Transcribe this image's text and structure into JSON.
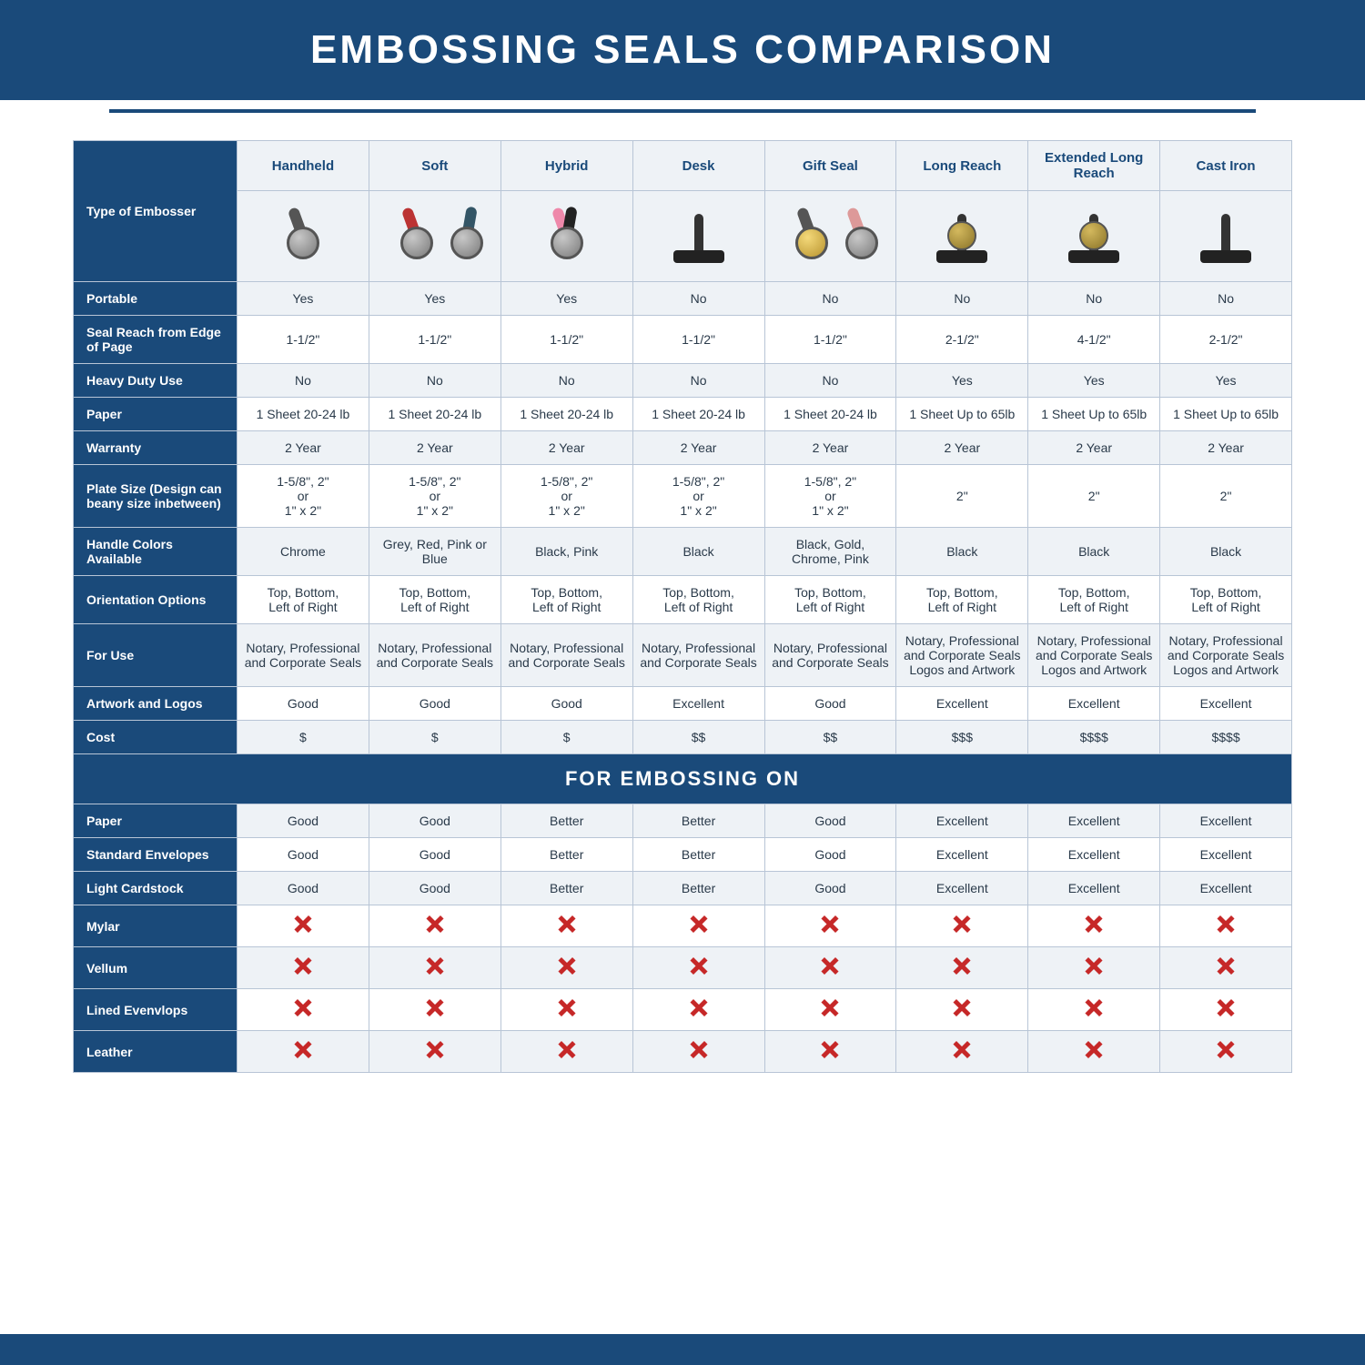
{
  "title": "EMBOSSING SEALS COMPARISON",
  "section_label": "FOR EMBOSSING ON",
  "type_label": "Type of Embosser",
  "styling": {
    "primary_color": "#1a4a7a",
    "alt_row_bg": "#eef2f6",
    "border_color": "#b8c5d6",
    "text_color": "#2a3a4a",
    "x_color": "#c62828",
    "title_fontsize": 44,
    "header_fontsize": 15,
    "cell_fontsize": 14,
    "section_fontsize": 22
  },
  "columns": [
    "Handheld",
    "Soft",
    "Hybrid",
    "Desk",
    "Gift Seal",
    "Long Reach",
    "Extended Long Reach",
    "Cast Iron"
  ],
  "rows": [
    {
      "label": "Portable",
      "alt": true,
      "cells": [
        "Yes",
        "Yes",
        "Yes",
        "No",
        "No",
        "No",
        "No",
        "No"
      ]
    },
    {
      "label": "Seal Reach from Edge of Page",
      "alt": false,
      "cells": [
        "1-1/2\"",
        "1-1/2\"",
        "1-1/2\"",
        "1-1/2\"",
        "1-1/2\"",
        "2-1/2\"",
        "4-1/2\"",
        "2-1/2\""
      ]
    },
    {
      "label": "Heavy Duty Use",
      "alt": true,
      "cells": [
        "No",
        "No",
        "No",
        "No",
        "No",
        "Yes",
        "Yes",
        "Yes"
      ]
    },
    {
      "label": "Paper",
      "alt": false,
      "cells": [
        "1 Sheet 20-24 lb",
        "1 Sheet 20-24 lb",
        "1 Sheet 20-24 lb",
        "1 Sheet 20-24 lb",
        "1 Sheet 20-24 lb",
        "1 Sheet Up to 65lb",
        "1 Sheet Up to 65lb",
        "1 Sheet Up to 65lb"
      ]
    },
    {
      "label": "Warranty",
      "alt": true,
      "cells": [
        "2 Year",
        "2 Year",
        "2 Year",
        "2 Year",
        "2 Year",
        "2 Year",
        "2 Year",
        "2 Year"
      ]
    },
    {
      "label": "Plate Size (Design can beany size inbetween)",
      "alt": false,
      "cells": [
        "1-5/8\", 2\"\nor\n1\" x 2\"",
        "1-5/8\", 2\"\nor\n1\" x 2\"",
        "1-5/8\", 2\"\nor\n1\" x 2\"",
        "1-5/8\", 2\"\nor\n1\" x 2\"",
        "1-5/8\", 2\"\nor\n1\" x 2\"",
        "2\"",
        "2\"",
        "2\""
      ]
    },
    {
      "label": "Handle Colors Available",
      "alt": true,
      "cells": [
        "Chrome",
        "Grey, Red, Pink or Blue",
        "Black, Pink",
        "Black",
        "Black, Gold, Chrome, Pink",
        "Black",
        "Black",
        "Black"
      ]
    },
    {
      "label": "Orientation Options",
      "alt": false,
      "cells": [
        "Top, Bottom,\nLeft of Right",
        "Top, Bottom,\nLeft of Right",
        "Top, Bottom,\nLeft of Right",
        "Top, Bottom,\nLeft of Right",
        "Top, Bottom,\nLeft of Right",
        "Top, Bottom,\nLeft of Right",
        "Top, Bottom,\nLeft of Right",
        "Top, Bottom,\nLeft of Right"
      ]
    },
    {
      "label": "For Use",
      "alt": true,
      "cells": [
        "Notary, Professional and Corporate Seals",
        "Notary, Professional and Corporate Seals",
        "Notary, Professional and Corporate Seals",
        "Notary, Professional and Corporate Seals",
        "Notary, Professional and Corporate Seals",
        "Notary, Professional and Corporate Seals Logos and Artwork",
        "Notary, Professional and Corporate Seals Logos and Artwork",
        "Notary, Professional and Corporate Seals Logos and Artwork"
      ]
    },
    {
      "label": "Artwork and Logos",
      "alt": false,
      "cells": [
        "Good",
        "Good",
        "Good",
        "Excellent",
        "Good",
        "Excellent",
        "Excellent",
        "Excellent"
      ]
    },
    {
      "label": "Cost",
      "alt": true,
      "cells": [
        "$",
        "$",
        "$",
        "$$",
        "$$",
        "$$$",
        "$$$$",
        "$$$$"
      ]
    }
  ],
  "emboss_rows": [
    {
      "label": "Paper",
      "alt": true,
      "cells": [
        "Good",
        "Good",
        "Better",
        "Better",
        "Good",
        "Excellent",
        "Excellent",
        "Excellent"
      ]
    },
    {
      "label": "Standard Envelopes",
      "alt": false,
      "cells": [
        "Good",
        "Good",
        "Better",
        "Better",
        "Good",
        "Excellent",
        "Excellent",
        "Excellent"
      ]
    },
    {
      "label": "Light Cardstock",
      "alt": true,
      "cells": [
        "Good",
        "Good",
        "Better",
        "Better",
        "Good",
        "Excellent",
        "Excellent",
        "Excellent"
      ]
    },
    {
      "label": "Mylar",
      "alt": false,
      "x": true
    },
    {
      "label": "Vellum",
      "alt": true,
      "x": true
    },
    {
      "label": "Lined Evenvlops",
      "alt": false,
      "x": true
    },
    {
      "label": "Leather",
      "alt": true,
      "x": true
    }
  ]
}
